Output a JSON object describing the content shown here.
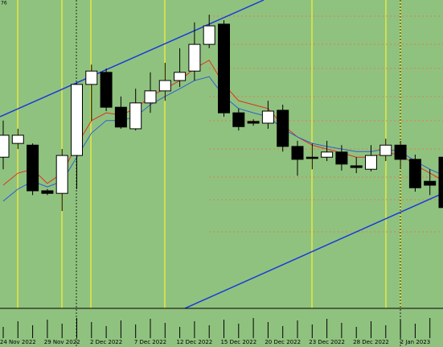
{
  "chart_data": {
    "type": "candlestick",
    "corner_label": "76",
    "categories": [
      null,
      "24 Nov 2022",
      null,
      null,
      "29 Nov 2022",
      null,
      null,
      "2 Dec 2022",
      null,
      null,
      "7 Dec 2022",
      null,
      null,
      "12 Dec 2022",
      null,
      null,
      "15 Dec 2022",
      null,
      null,
      "20 Dec 2022",
      null,
      null,
      "23 Dec 2022",
      null,
      null,
      "28 Dec 2022",
      null,
      null,
      "2 Jan 2023",
      null,
      null
    ],
    "ylim": [
      1.0058,
      1.0774
    ],
    "open": [
      1.0409,
      1.0441,
      1.0437,
      1.0331,
      1.0325,
      1.0413,
      1.0578,
      1.0606,
      1.0525,
      1.0475,
      1.0535,
      1.0563,
      1.0587,
      1.0609,
      1.0671,
      1.0718,
      1.0512,
      1.0492,
      1.0488,
      1.0518,
      1.0434,
      1.0409,
      1.0409,
      1.0421,
      1.0389,
      1.0381,
      1.0413,
      1.0437,
      1.0404,
      1.0353,
      1.0409
    ],
    "high": [
      1.0494,
      1.0475,
      1.0441,
      1.0335,
      1.0428,
      1.0581,
      1.0624,
      1.0615,
      1.055,
      1.0568,
      1.0606,
      1.0628,
      1.0662,
      1.0722,
      1.074,
      1.0727,
      1.0522,
      1.0497,
      1.054,
      1.0531,
      1.0447,
      1.0441,
      1.0447,
      1.0437,
      1.0409,
      1.0437,
      1.0452,
      1.0447,
      1.0415,
      1.0381,
      1.0428
    ],
    "low": [
      1.0381,
      1.0428,
      1.0321,
      1.0321,
      1.0284,
      1.0335,
      1.0494,
      1.0516,
      1.0475,
      1.0471,
      1.0512,
      1.054,
      1.0572,
      1.0587,
      1.0662,
      1.0503,
      1.0471,
      1.0482,
      1.0475,
      1.0422,
      1.0366,
      1.0381,
      1.04,
      1.0378,
      1.0372,
      1.0376,
      1.04,
      1.0381,
      1.0329,
      1.0321,
      1.0284
    ],
    "close": [
      1.046,
      1.046,
      1.0331,
      1.0325,
      1.0413,
      1.0578,
      1.0609,
      1.0525,
      1.0479,
      1.0535,
      1.0563,
      1.0587,
      1.0606,
      1.0671,
      1.0714,
      1.0512,
      1.048,
      1.0488,
      1.0516,
      1.0434,
      1.0404,
      1.0406,
      1.0421,
      1.0393,
      1.0385,
      1.0413,
      1.0437,
      1.0404,
      1.0338,
      1.0344,
      1.0292
    ],
    "up_color": "#ffffff",
    "down_color": "#000000",
    "series": [
      {
        "color": "#e03020",
        "values": [
          1.0344,
          1.0372,
          1.0381,
          1.0348,
          1.0372,
          1.0437,
          1.0494,
          1.0512,
          1.0507,
          1.0522,
          1.055,
          1.0568,
          1.0587,
          1.0615,
          1.0634,
          1.0578,
          1.054,
          1.0531,
          1.0522,
          1.0484,
          1.0456,
          1.0437,
          1.0428,
          1.0419,
          1.0409,
          1.0409,
          1.0419,
          1.0415,
          1.0391,
          1.0372,
          1.0353
        ]
      },
      {
        "color": "#3060d0",
        "values": [
          1.0307,
          1.0335,
          1.0353,
          1.034,
          1.0353,
          1.0409,
          1.0465,
          1.0494,
          1.0494,
          1.0503,
          1.0531,
          1.055,
          1.0568,
          1.0587,
          1.0596,
          1.055,
          1.0522,
          1.0512,
          1.0503,
          1.0475,
          1.0456,
          1.0441,
          1.0434,
          1.0428,
          1.0422,
          1.0422,
          1.0428,
          1.0422,
          1.04,
          1.0381,
          1.0366
        ]
      }
    ]
  }
}
